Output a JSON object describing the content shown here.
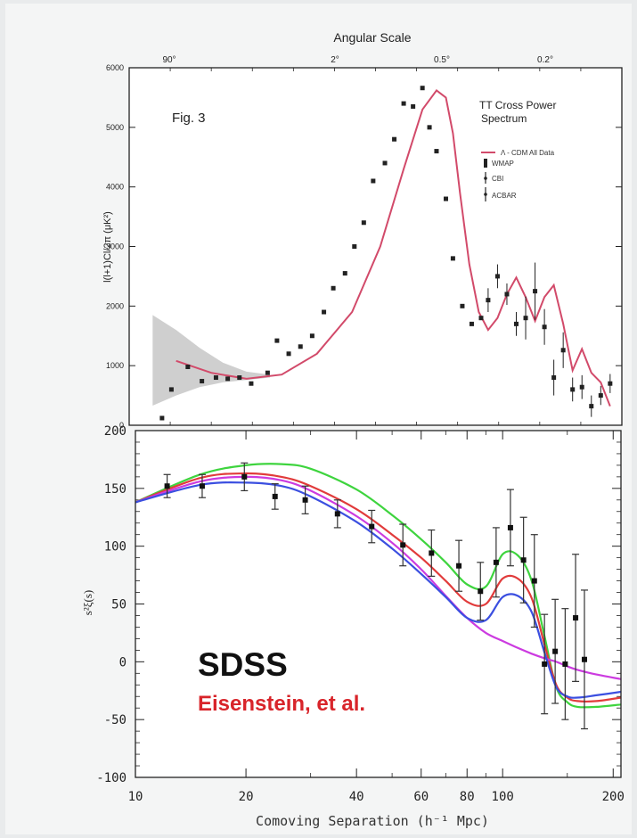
{
  "chart_data": [
    {
      "type": "line",
      "top_axis_title": "Angular Scale",
      "top_axis_ticks": [
        "90°",
        "2°",
        "0.5°",
        "0.2°"
      ],
      "fig_label": "Fig. 3",
      "panel_title_line1": "TT Cross Power",
      "panel_title_line2": "Spectrum",
      "ylabel": "l(l+1)Cl/2π (μK²)",
      "ylim": [
        0,
        6000
      ],
      "yticks": [
        0,
        1000,
        2000,
        3000,
        4000,
        5000,
        6000
      ],
      "x_scale": "log",
      "xlim": [
        1.35,
        3.45
      ],
      "legend": [
        "Λ - CDM All Data",
        "WMAP",
        "CBI",
        "ACBAR"
      ],
      "model_color": "#d24a6a",
      "band_color": "#c7c7c7",
      "model": {
        "x": [
          1.55,
          1.7,
          1.85,
          2.0,
          2.15,
          2.3,
          2.42,
          2.52,
          2.6,
          2.66,
          2.7,
          2.73,
          2.76,
          2.8,
          2.84,
          2.88,
          2.92,
          2.96,
          3.0,
          3.04,
          3.08,
          3.12,
          3.16,
          3.2,
          3.24,
          3.28,
          3.32,
          3.36,
          3.4
        ],
        "y": [
          1080,
          880,
          780,
          850,
          1200,
          1900,
          3000,
          4300,
          5300,
          5620,
          5500,
          4900,
          3900,
          2700,
          1900,
          1600,
          1800,
          2200,
          2480,
          2150,
          1750,
          2150,
          2350,
          1700,
          920,
          1280,
          880,
          720,
          320
        ]
      },
      "points": {
        "x": [
          1.49,
          1.53,
          1.6,
          1.66,
          1.72,
          1.77,
          1.82,
          1.87,
          1.94,
          1.98,
          2.03,
          2.08,
          2.13,
          2.18,
          2.22,
          2.27,
          2.31,
          2.35,
          2.39,
          2.44,
          2.48,
          2.52,
          2.56,
          2.6,
          2.63,
          2.66,
          2.7,
          2.73,
          2.77,
          2.81,
          2.85,
          2.88,
          2.92,
          2.96,
          3.0,
          3.04,
          3.08,
          3.12,
          3.16,
          3.2,
          3.24,
          3.28,
          3.32,
          3.36,
          3.4
        ],
        "y": [
          120,
          600,
          980,
          740,
          800,
          780,
          800,
          700,
          880,
          1420,
          1200,
          1320,
          1500,
          1900,
          2300,
          2550,
          3000,
          3400,
          4100,
          4400,
          4800,
          5400,
          5350,
          5660,
          5000,
          4600,
          3800,
          2800,
          2000,
          1700,
          1800,
          2100,
          2500,
          2200,
          1700,
          1800,
          2250,
          1650,
          800,
          1260,
          600,
          640,
          320,
          500,
          700
        ],
        "err": [
          0,
          0,
          0,
          0,
          0,
          0,
          0,
          0,
          0,
          0,
          0,
          0,
          0,
          0,
          0,
          0,
          0,
          0,
          0,
          0,
          0,
          0,
          0,
          0,
          0,
          0,
          0,
          0,
          0,
          0,
          0,
          200,
          200,
          180,
          200,
          360,
          480,
          300,
          300,
          300,
          200,
          200,
          180,
          160,
          160
        ]
      }
    },
    {
      "type": "line",
      "xlabel": "Comoving Separation (h⁻¹ Mpc)",
      "ylabel": "s²ξ(s)",
      "x_scale": "log",
      "xlim": [
        10,
        210
      ],
      "ylim": [
        -100,
        200
      ],
      "xticks": [
        10,
        20,
        40,
        60,
        80,
        100,
        200
      ],
      "yticks": [
        -100,
        -50,
        0,
        50,
        100,
        150,
        200
      ],
      "annotation_title": "SDSS",
      "annotation_authors": "Eisenstein, et al.",
      "annotation_authors_color": "#d8242a",
      "series": [
        {
          "color": "#3ed43e",
          "x": [
            10,
            15,
            20,
            25,
            30,
            40,
            50,
            60,
            70,
            80,
            90,
            100,
            110,
            120,
            130,
            140,
            150,
            160,
            180,
            210
          ],
          "y": [
            138,
            162,
            170,
            171,
            167,
            149,
            127,
            106,
            86,
            67,
            65,
            93,
            92,
            70,
            22,
            -22,
            -35,
            -39,
            -39,
            -37
          ]
        },
        {
          "color": "#e13b3b",
          "x": [
            10,
            15,
            20,
            25,
            30,
            40,
            50,
            60,
            70,
            80,
            90,
            100,
            110,
            120,
            130,
            140,
            150,
            160,
            180,
            210
          ],
          "y": [
            138,
            159,
            163,
            160,
            152,
            132,
            110,
            90,
            70,
            52,
            50,
            72,
            72,
            55,
            15,
            -20,
            -31,
            -34,
            -34,
            -31
          ]
        },
        {
          "color": "#cc3be0",
          "x": [
            10,
            15,
            20,
            25,
            30,
            40,
            50,
            60,
            70,
            80,
            90,
            100,
            110,
            120,
            130,
            140,
            150,
            160,
            180,
            210
          ],
          "y": [
            138,
            156,
            160,
            157,
            148,
            126,
            103,
            80,
            57,
            38,
            25,
            18,
            12,
            7,
            3,
            0,
            -4,
            -7,
            -11,
            -15
          ]
        },
        {
          "color": "#3b4fe0",
          "x": [
            10,
            15,
            20,
            25,
            30,
            40,
            50,
            60,
            70,
            80,
            90,
            100,
            110,
            120,
            130,
            140,
            150,
            160,
            180,
            210
          ],
          "y": [
            138,
            153,
            155,
            152,
            143,
            121,
            98,
            76,
            56,
            38,
            36,
            56,
            57,
            43,
            8,
            -22,
            -30,
            -31,
            -29,
            -26
          ]
        }
      ],
      "points": {
        "x": [
          12.2,
          15.2,
          19.8,
          24,
          29,
          35.5,
          44,
          53.5,
          64,
          76,
          87,
          96,
          105,
          114,
          122,
          130,
          139,
          148,
          158,
          167
        ],
        "y": [
          152,
          152,
          160,
          143,
          140,
          128,
          117,
          101,
          94,
          83,
          61,
          86,
          116,
          88,
          70,
          -2,
          9,
          -2,
          38,
          2
        ],
        "err": [
          10,
          10,
          12,
          11,
          12,
          12,
          14,
          18,
          20,
          22,
          25,
          30,
          33,
          37,
          40,
          43,
          45,
          48,
          55,
          60
        ]
      },
      "point_color": "#111111"
    }
  ]
}
